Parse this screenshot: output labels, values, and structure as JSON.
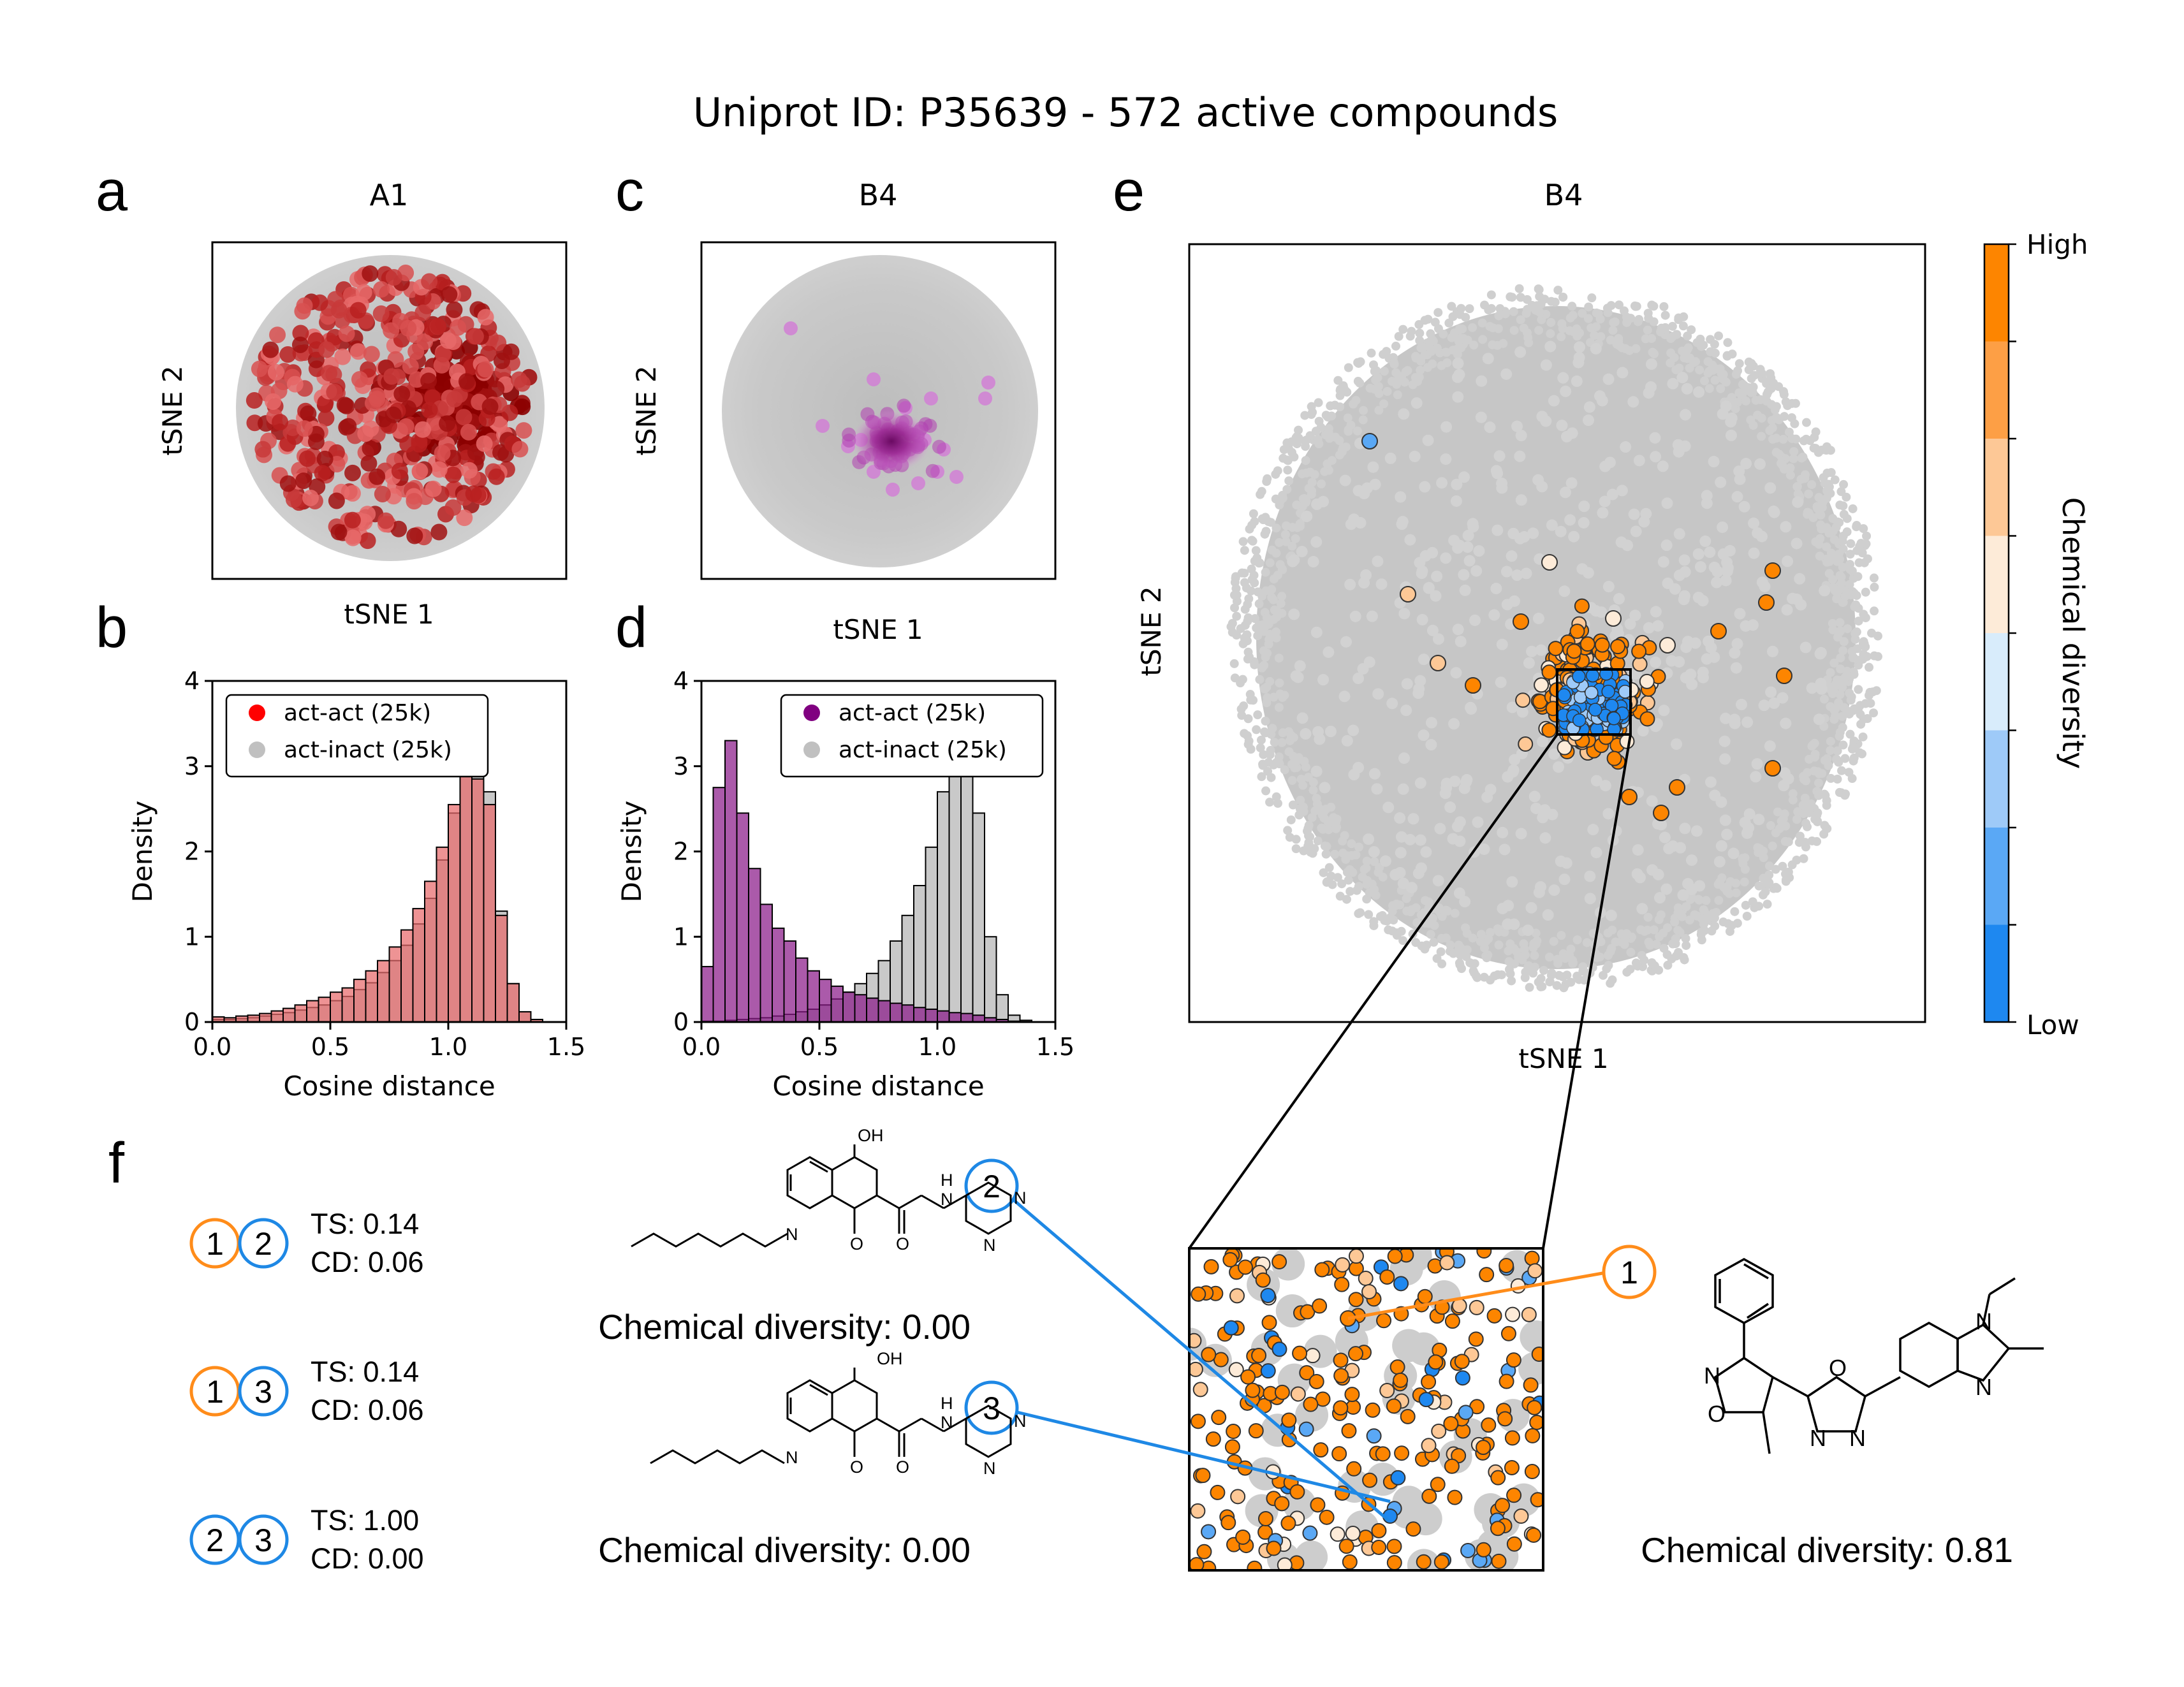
{
  "figure": {
    "title": "Uniprot ID: P35639 - 572 active compounds",
    "panel_letters": [
      "a",
      "b",
      "c",
      "d",
      "e",
      "f"
    ]
  },
  "colors": {
    "inactive_gray": "#c8c8c8",
    "act_red": "#e8696b",
    "act_red_dark": "#8b0000",
    "act_purple": "#9b5aa6",
    "act_purple_dark": "#7a0a70",
    "orange_high": "#ff7f0e",
    "blue_low": "#1e88e5"
  },
  "panels": {
    "a": {
      "title": "A1",
      "xlabel": "tSNE 1",
      "ylabel": "tSNE 2"
    },
    "c": {
      "title": "B4",
      "xlabel": "tSNE 1",
      "ylabel": "tSNE 2"
    },
    "e": {
      "title": "B4",
      "xlabel": "tSNE 1",
      "ylabel": "tSNE 2"
    },
    "colorbar": {
      "label": "Chemical diversity",
      "high": "High",
      "low": "Low"
    }
  },
  "chart_data": [
    {
      "id": "b",
      "type": "bar",
      "xlabel": "Cosine distance",
      "ylabel": "Density",
      "xlim": [
        0,
        1.5
      ],
      "ylim": [
        0,
        4
      ],
      "xticks": [
        "0.0",
        "0.5",
        "1.0",
        "1.5"
      ],
      "yticks": [
        "0",
        "1",
        "2",
        "3",
        "4"
      ],
      "bin_width": 0.05,
      "bin_start": 0,
      "legend": {
        "position": "upper-center"
      },
      "series": [
        {
          "name": "act-act (25k)",
          "color": "#e8696b",
          "values": [
            0.06,
            0.05,
            0.07,
            0.08,
            0.1,
            0.13,
            0.16,
            0.2,
            0.25,
            0.29,
            0.35,
            0.4,
            0.5,
            0.6,
            0.72,
            0.88,
            1.08,
            1.33,
            1.65,
            2.05,
            2.55,
            3.05,
            2.85,
            2.55,
            1.25,
            0.45,
            0.12,
            0.03,
            0,
            0
          ]
        },
        {
          "name": "act-inact (25k)",
          "color": "#c0c0c0",
          "values": [
            0.03,
            0.03,
            0.04,
            0.05,
            0.07,
            0.09,
            0.11,
            0.14,
            0.17,
            0.2,
            0.25,
            0.3,
            0.38,
            0.46,
            0.58,
            0.72,
            0.9,
            1.15,
            1.45,
            1.9,
            2.45,
            3.3,
            3.45,
            2.7,
            1.3,
            0.45,
            0.12,
            0.03,
            0,
            0
          ]
        }
      ]
    },
    {
      "id": "d",
      "type": "bar",
      "xlabel": "Cosine distance",
      "ylabel": "Density",
      "xlim": [
        0,
        1.5
      ],
      "ylim": [
        0,
        4
      ],
      "xticks": [
        "0.0",
        "0.5",
        "1.0",
        "1.5"
      ],
      "yticks": [
        "0",
        "1",
        "2",
        "3",
        "4"
      ],
      "bin_width": 0.05,
      "bin_start": 0,
      "legend": {
        "position": "upper-right"
      },
      "series": [
        {
          "name": "act-act (25k)",
          "color": "#8b1a89",
          "values": [
            0.65,
            2.75,
            3.3,
            2.45,
            1.8,
            1.38,
            1.1,
            0.95,
            0.75,
            0.6,
            0.5,
            0.42,
            0.35,
            0.32,
            0.28,
            0.25,
            0.22,
            0.2,
            0.17,
            0.15,
            0.13,
            0.11,
            0.1,
            0.08,
            0.05,
            0.03,
            0.01,
            0,
            0,
            0
          ]
        },
        {
          "name": "act-inact (25k)",
          "color": "#c0c0c0",
          "values": [
            0.01,
            0.01,
            0.02,
            0.03,
            0.04,
            0.05,
            0.07,
            0.09,
            0.12,
            0.15,
            0.2,
            0.27,
            0.35,
            0.45,
            0.57,
            0.72,
            0.95,
            1.25,
            1.6,
            2.05,
            2.7,
            3.35,
            3.45,
            2.45,
            1.0,
            0.32,
            0.08,
            0.02,
            0,
            0
          ]
        }
      ]
    }
  ],
  "panel_f": {
    "pairs": [
      {
        "a": "1",
        "b": "2",
        "a_color": "orange",
        "b_color": "blue",
        "ts": "TS: 0.14",
        "cd": "CD: 0.06"
      },
      {
        "a": "1",
        "b": "3",
        "a_color": "orange",
        "b_color": "blue",
        "ts": "TS: 0.14",
        "cd": "CD: 0.06"
      },
      {
        "a": "2",
        "b": "3",
        "a_color": "blue",
        "b_color": "blue",
        "ts": "TS: 1.00",
        "cd": "CD: 0.00"
      }
    ],
    "molecules": [
      {
        "caption": "Chemical diversity: 0.00",
        "atoms": [
          "OH",
          "N",
          "O",
          "O",
          "N",
          "H",
          "N",
          "N"
        ]
      },
      {
        "caption": "Chemical diversity: 0.00",
        "atoms": [
          "OH",
          "N",
          "O",
          "O",
          "N",
          "H",
          "N",
          "N"
        ]
      },
      {
        "caption": "Chemical diversity: 0.81",
        "atoms": [
          "N",
          "O",
          "O",
          "N",
          "N",
          "N",
          "N"
        ]
      }
    ],
    "callouts": [
      "1",
      "2",
      "3"
    ]
  }
}
